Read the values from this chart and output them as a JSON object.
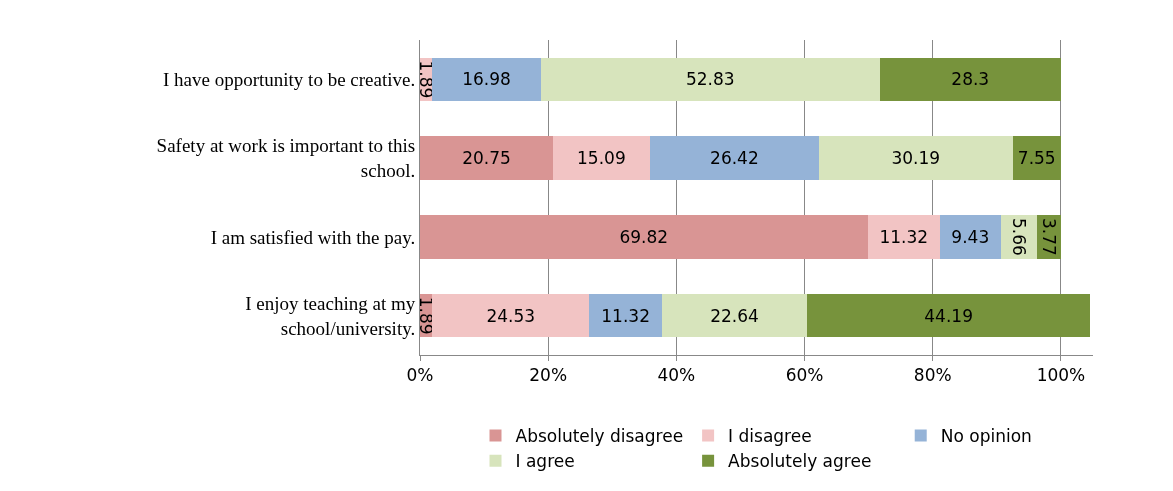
{
  "chart_data": {
    "type": "bar",
    "orientation": "horizontal",
    "stacked": true,
    "categories": [
      "I have opportunity to be creative.",
      "Safety at work is important to this school.",
      "I am satisfied with the pay.",
      "I enjoy teaching at my school/university."
    ],
    "series": [
      {
        "name": "Absolutely disagree",
        "color": "#d99594",
        "values": [
          null,
          20.75,
          69.82,
          1.89
        ]
      },
      {
        "name": "I disagree",
        "color": "#f2c4c4",
        "values": [
          1.89,
          15.09,
          11.32,
          24.53
        ]
      },
      {
        "name": "No opinion",
        "color": "#95b3d7",
        "values": [
          16.98,
          26.42,
          9.43,
          11.32
        ]
      },
      {
        "name": "I agree",
        "color": "#d7e4bc",
        "values": [
          52.83,
          30.19,
          5.66,
          22.64
        ]
      },
      {
        "name": "Absolutely agree",
        "color": "#77933c",
        "values": [
          28.3,
          7.55,
          3.77,
          44.19
        ]
      }
    ],
    "xlim": [
      0,
      105
    ],
    "xticks": [
      {
        "value": 0,
        "label": "0%"
      },
      {
        "value": 20,
        "label": "20%"
      },
      {
        "value": 40,
        "label": "40%"
      },
      {
        "value": 60,
        "label": "60%"
      },
      {
        "value": 80,
        "label": "80%"
      },
      {
        "value": 100,
        "label": "100%"
      }
    ],
    "grid": "x",
    "legend": "bottom",
    "data_labels": true
  }
}
